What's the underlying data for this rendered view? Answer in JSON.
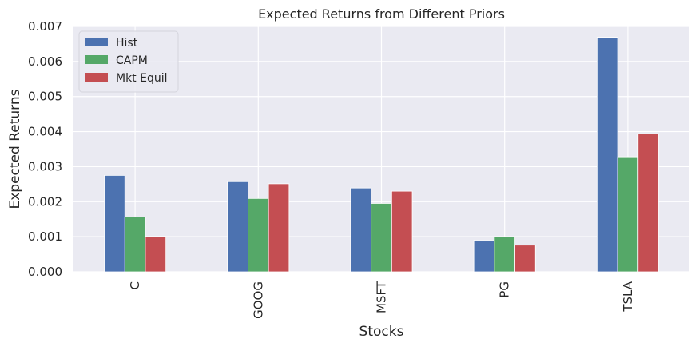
{
  "chart_data": {
    "type": "bar",
    "title": "Expected Returns from Different Priors",
    "xlabel": "Stocks",
    "ylabel": "Expected Returns",
    "categories": [
      "C",
      "GOOG",
      "MSFT",
      "PG",
      "TSLA"
    ],
    "series": [
      {
        "name": "Hist",
        "color": "#4C72B0",
        "values": [
          0.00275,
          0.00257,
          0.00239,
          0.0009,
          0.00669
        ]
      },
      {
        "name": "CAPM",
        "color": "#55A868",
        "values": [
          0.00156,
          0.00209,
          0.00195,
          0.00099,
          0.00328
        ]
      },
      {
        "name": "Mkt Equil",
        "color": "#C44E52",
        "values": [
          0.00101,
          0.00251,
          0.0023,
          0.00076,
          0.00394
        ]
      }
    ],
    "ylim": [
      0,
      0.007
    ],
    "yticks": [
      "0.000",
      "0.001",
      "0.002",
      "0.003",
      "0.004",
      "0.005",
      "0.006",
      "0.007"
    ],
    "ytick_values": [
      0,
      0.001,
      0.002,
      0.003,
      0.004,
      0.005,
      0.006,
      0.007
    ],
    "grid": true,
    "legend_position": "top-left",
    "background_color": "#EAEAF2",
    "grid_color": "#FFFFFF"
  }
}
